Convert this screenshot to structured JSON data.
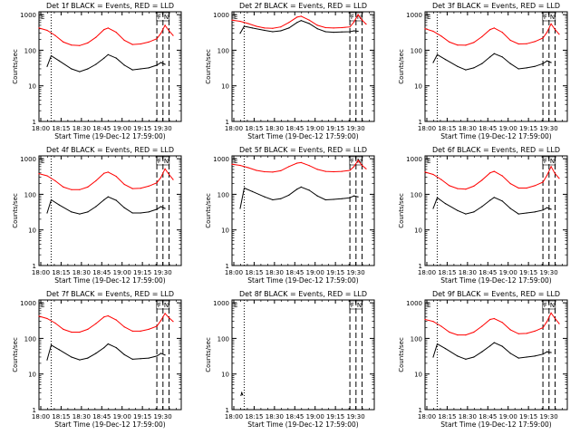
{
  "figure": {
    "xlabel": "Start Time (19-Dec-12 17:59:00)",
    "ylabel": "Counts/sec",
    "x_ticks": [
      "18:00",
      "18:15",
      "18:30",
      "18:45",
      "19:00",
      "19:15",
      "19:30"
    ],
    "y_ticks": [
      "1",
      "10",
      "100",
      "1000"
    ],
    "marker_labels": [
      "E",
      "F",
      "N"
    ],
    "colors": {
      "events": "#000000",
      "lld": "#ff0000",
      "background": "#ffffff"
    }
  },
  "chart_data": [
    {
      "type": "line",
      "title": "Det 1f BLACK = Events, RED = LLD",
      "xlim": [
        0,
        35
      ],
      "ylim": [
        1,
        1200
      ],
      "yscale": "log",
      "grid": false,
      "series": [
        {
          "color": "#000000",
          "x": [
            2,
            3,
            5,
            8,
            10,
            12,
            14,
            16,
            17,
            19,
            21,
            23,
            25,
            27,
            29,
            30,
            31
          ],
          "y": [
            35,
            70,
            50,
            30,
            25,
            30,
            40,
            60,
            75,
            60,
            38,
            28,
            30,
            32,
            38,
            45,
            40
          ]
        },
        {
          "color": "#ff0000",
          "x": [
            0,
            2,
            4,
            6,
            8,
            10,
            12,
            14,
            16,
            17,
            19,
            21,
            23,
            25,
            27,
            29,
            30,
            31,
            32,
            33
          ],
          "y": [
            420,
            360,
            260,
            170,
            140,
            135,
            160,
            230,
            380,
            420,
            320,
            190,
            145,
            150,
            170,
            210,
            300,
            500,
            350,
            260
          ]
        }
      ],
      "vlines": [
        {
          "x": 3,
          "style": "dotted"
        },
        {
          "x": 29,
          "style": "dashed"
        },
        {
          "x": 30.5,
          "style": "dashed"
        },
        {
          "x": 32,
          "style": "dashed"
        }
      ]
    },
    {
      "type": "line",
      "title": "Det 2f BLACK = Events, RED = LLD",
      "xlim": [
        0,
        35
      ],
      "ylim": [
        1,
        1200
      ],
      "yscale": "log",
      "grid": false,
      "series": [
        {
          "color": "#000000",
          "x": [
            2,
            3,
            5,
            8,
            10,
            12,
            14,
            16,
            17,
            19,
            21,
            23,
            25,
            27,
            29,
            30,
            31
          ],
          "y": [
            300,
            470,
            420,
            360,
            330,
            350,
            420,
            600,
            680,
            560,
            400,
            330,
            320,
            325,
            330,
            350,
            340
          ]
        },
        {
          "color": "#ff0000",
          "x": [
            0,
            2,
            4,
            6,
            8,
            10,
            12,
            14,
            16,
            17,
            19,
            21,
            23,
            25,
            27,
            29,
            30,
            31,
            32,
            33
          ],
          "y": [
            700,
            650,
            560,
            470,
            420,
            410,
            450,
            600,
            850,
            900,
            700,
            500,
            430,
            420,
            430,
            450,
            620,
            1000,
            700,
            540
          ]
        }
      ],
      "vlines": [
        {
          "x": 3,
          "style": "dotted"
        },
        {
          "x": 29,
          "style": "dashed"
        },
        {
          "x": 30.5,
          "style": "dashed"
        },
        {
          "x": 32,
          "style": "dashed"
        }
      ]
    },
    {
      "type": "line",
      "title": "Det 3f BLACK = Events, RED = LLD",
      "xlim": [
        0,
        35
      ],
      "ylim": [
        1,
        1200
      ],
      "yscale": "log",
      "grid": false,
      "series": [
        {
          "color": "#000000",
          "x": [
            2,
            3,
            5,
            8,
            10,
            12,
            14,
            16,
            17,
            19,
            21,
            23,
            25,
            27,
            29,
            30,
            31
          ],
          "y": [
            45,
            75,
            55,
            35,
            28,
            32,
            42,
            65,
            80,
            65,
            42,
            30,
            32,
            35,
            42,
            50,
            45
          ]
        },
        {
          "color": "#ff0000",
          "x": [
            0,
            2,
            4,
            6,
            8,
            10,
            12,
            14,
            16,
            17,
            19,
            21,
            23,
            25,
            27,
            29,
            30,
            31,
            32,
            33
          ],
          "y": [
            400,
            340,
            250,
            170,
            140,
            138,
            165,
            240,
            380,
            420,
            320,
            190,
            150,
            152,
            175,
            220,
            320,
            550,
            380,
            280
          ]
        }
      ],
      "vlines": [
        {
          "x": 3,
          "style": "dotted"
        },
        {
          "x": 29,
          "style": "dashed"
        },
        {
          "x": 30.5,
          "style": "dashed"
        },
        {
          "x": 32,
          "style": "dashed"
        }
      ]
    },
    {
      "type": "line",
      "title": "Det 4f BLACK = Events, RED = LLD",
      "xlim": [
        0,
        35
      ],
      "ylim": [
        1,
        1200
      ],
      "yscale": "log",
      "grid": false,
      "series": [
        {
          "color": "#000000",
          "x": [
            2,
            3,
            5,
            8,
            10,
            12,
            14,
            16,
            17,
            19,
            21,
            23,
            25,
            27,
            29,
            30,
            31
          ],
          "y": [
            30,
            70,
            50,
            32,
            28,
            32,
            45,
            70,
            85,
            68,
            42,
            30,
            30,
            32,
            38,
            45,
            40
          ]
        },
        {
          "color": "#ff0000",
          "x": [
            0,
            2,
            4,
            6,
            8,
            10,
            12,
            14,
            16,
            17,
            19,
            21,
            23,
            25,
            27,
            29,
            30,
            31,
            32,
            33
          ],
          "y": [
            380,
            330,
            240,
            160,
            135,
            135,
            160,
            240,
            390,
            420,
            320,
            190,
            145,
            148,
            170,
            210,
            300,
            520,
            360,
            260
          ]
        }
      ],
      "vlines": [
        {
          "x": 3,
          "style": "dotted"
        },
        {
          "x": 29,
          "style": "dashed"
        },
        {
          "x": 30.5,
          "style": "dashed"
        },
        {
          "x": 32,
          "style": "dashed"
        }
      ]
    },
    {
      "type": "line",
      "title": "Det 5f BLACK = Events, RED = LLD",
      "xlim": [
        0,
        35
      ],
      "ylim": [
        1,
        1200
      ],
      "yscale": "log",
      "grid": false,
      "series": [
        {
          "color": "#000000",
          "x": [
            2,
            3,
            5,
            8,
            10,
            12,
            14,
            16,
            17,
            19,
            21,
            23,
            25,
            27,
            29,
            30,
            31
          ],
          "y": [
            40,
            150,
            120,
            85,
            70,
            75,
            95,
            140,
            160,
            130,
            90,
            70,
            72,
            75,
            80,
            90,
            85
          ]
        },
        {
          "color": "#ff0000",
          "x": [
            0,
            2,
            4,
            6,
            8,
            10,
            12,
            14,
            16,
            17,
            19,
            21,
            23,
            25,
            27,
            29,
            30,
            31,
            32,
            33
          ],
          "y": [
            700,
            650,
            560,
            470,
            430,
            420,
            460,
            600,
            750,
            780,
            640,
            500,
            440,
            430,
            440,
            470,
            600,
            900,
            650,
            520
          ]
        }
      ],
      "vlines": [
        {
          "x": 3,
          "style": "dotted"
        },
        {
          "x": 29,
          "style": "dashed"
        },
        {
          "x": 30.5,
          "style": "dashed"
        },
        {
          "x": 32,
          "style": "dashed"
        }
      ]
    },
    {
      "type": "line",
      "title": "Det 6f BLACK = Events, RED = LLD",
      "xlim": [
        0,
        35
      ],
      "ylim": [
        1,
        1200
      ],
      "yscale": "log",
      "grid": false,
      "series": [
        {
          "color": "#000000",
          "x": [
            2,
            3,
            5,
            8,
            10,
            12,
            14,
            16,
            17,
            19,
            21,
            23,
            25,
            27,
            29,
            30,
            31
          ],
          "y": [
            40,
            80,
            55,
            35,
            28,
            32,
            45,
            68,
            82,
            65,
            40,
            28,
            30,
            32,
            36,
            42,
            38
          ]
        },
        {
          "color": "#ff0000",
          "x": [
            0,
            2,
            4,
            6,
            8,
            10,
            12,
            14,
            16,
            17,
            19,
            21,
            23,
            25,
            27,
            29,
            30,
            31,
            32,
            33
          ],
          "y": [
            420,
            360,
            260,
            175,
            145,
            140,
            170,
            250,
            400,
            440,
            330,
            200,
            150,
            150,
            175,
            220,
            340,
            600,
            380,
            280
          ]
        }
      ],
      "vlines": [
        {
          "x": 3,
          "style": "dotted"
        },
        {
          "x": 29,
          "style": "dashed"
        },
        {
          "x": 30.5,
          "style": "dashed"
        },
        {
          "x": 32,
          "style": "dashed"
        }
      ]
    },
    {
      "type": "line",
      "title": "Det 7f BLACK = Events, RED = LLD",
      "xlim": [
        0,
        35
      ],
      "ylim": [
        1,
        1200
      ],
      "yscale": "log",
      "grid": false,
      "series": [
        {
          "color": "#000000",
          "x": [
            2,
            3,
            5,
            8,
            10,
            12,
            14,
            16,
            17,
            19,
            21,
            23,
            25,
            27,
            29,
            30,
            31
          ],
          "y": [
            25,
            65,
            48,
            30,
            25,
            28,
            38,
            55,
            70,
            55,
            35,
            26,
            27,
            28,
            32,
            38,
            34
          ]
        },
        {
          "color": "#ff0000",
          "x": [
            0,
            2,
            4,
            6,
            8,
            10,
            12,
            14,
            16,
            17,
            19,
            21,
            23,
            25,
            27,
            29,
            30,
            31,
            32,
            33
          ],
          "y": [
            420,
            360,
            270,
            180,
            150,
            150,
            180,
            260,
            400,
            430,
            330,
            210,
            160,
            160,
            180,
            220,
            320,
            500,
            380,
            300
          ]
        }
      ],
      "vlines": [
        {
          "x": 3,
          "style": "dotted"
        },
        {
          "x": 29,
          "style": "dashed"
        },
        {
          "x": 30.5,
          "style": "dashed"
        },
        {
          "x": 32,
          "style": "dashed"
        }
      ]
    },
    {
      "type": "line",
      "title": "Det 8f BLACK = Events, RED = LLD",
      "xlim": [
        0,
        35
      ],
      "ylim": [
        1,
        1200
      ],
      "yscale": "log",
      "grid": false,
      "series": [
        {
          "color": "#000000",
          "x": [
            2.2,
            2.4,
            2.6
          ],
          "y": [
            2.5,
            3.0,
            2.6
          ]
        }
      ],
      "vlines": [
        {
          "x": 3,
          "style": "dotted"
        },
        {
          "x": 29,
          "style": "dashed"
        },
        {
          "x": 30.5,
          "style": "dashed"
        },
        {
          "x": 32,
          "style": "dashed"
        }
      ]
    },
    {
      "type": "line",
      "title": "Det 9f BLACK = Events, RED = LLD",
      "xlim": [
        0,
        35
      ],
      "ylim": [
        1,
        1200
      ],
      "yscale": "log",
      "grid": false,
      "series": [
        {
          "color": "#000000",
          "x": [
            2,
            3,
            5,
            8,
            10,
            12,
            14,
            16,
            17,
            19,
            21,
            23,
            25,
            27,
            29,
            30,
            31
          ],
          "y": [
            30,
            70,
            52,
            32,
            26,
            30,
            42,
            62,
            76,
            60,
            38,
            28,
            30,
            32,
            36,
            42,
            40
          ]
        },
        {
          "color": "#ff0000",
          "x": [
            0,
            2,
            4,
            6,
            8,
            10,
            12,
            14,
            16,
            17,
            19,
            21,
            23,
            25,
            27,
            29,
            30,
            31,
            32,
            33
          ],
          "y": [
            340,
            300,
            220,
            150,
            125,
            125,
            150,
            220,
            340,
            360,
            280,
            175,
            135,
            138,
            160,
            200,
            300,
            520,
            360,
            260
          ]
        }
      ],
      "vlines": [
        {
          "x": 3,
          "style": "dotted"
        },
        {
          "x": 29,
          "style": "dashed"
        },
        {
          "x": 30.5,
          "style": "dashed"
        },
        {
          "x": 32,
          "style": "dashed"
        }
      ]
    }
  ]
}
